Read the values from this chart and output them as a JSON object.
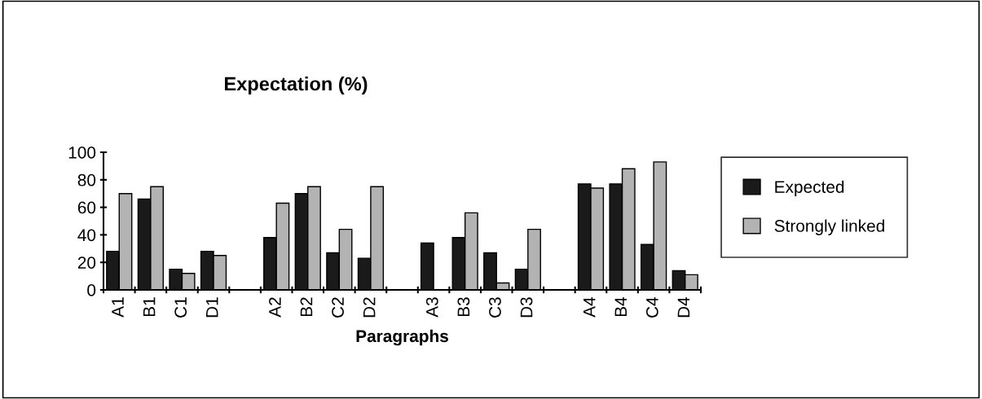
{
  "chart_data": {
    "type": "bar",
    "title": "Expectation (%)",
    "xlabel": "Paragraphs",
    "categories": [
      "A1",
      "B1",
      "C1",
      "D1",
      null,
      "A2",
      "B2",
      "C2",
      "D2",
      null,
      "A3",
      "B3",
      "C3",
      "D3",
      null,
      "A4",
      "B4",
      "C4",
      "D4"
    ],
    "series": [
      {
        "name": "Expected",
        "color": "#1a1a1a",
        "values": [
          28,
          66,
          15,
          28,
          null,
          38,
          70,
          27,
          23,
          null,
          34,
          38,
          27,
          15,
          null,
          77,
          77,
          33,
          14
        ]
      },
      {
        "name": "Strongly linked",
        "color": "#b3b3b3",
        "values": [
          70,
          75,
          12,
          25,
          null,
          63,
          75,
          44,
          75,
          null,
          null,
          56,
          5,
          44,
          null,
          74,
          88,
          93,
          11
        ]
      }
    ],
    "ylim": [
      0,
      100
    ],
    "yticks": [
      0,
      20,
      40,
      60,
      80,
      100
    ],
    "grid": false,
    "legend": "right"
  }
}
